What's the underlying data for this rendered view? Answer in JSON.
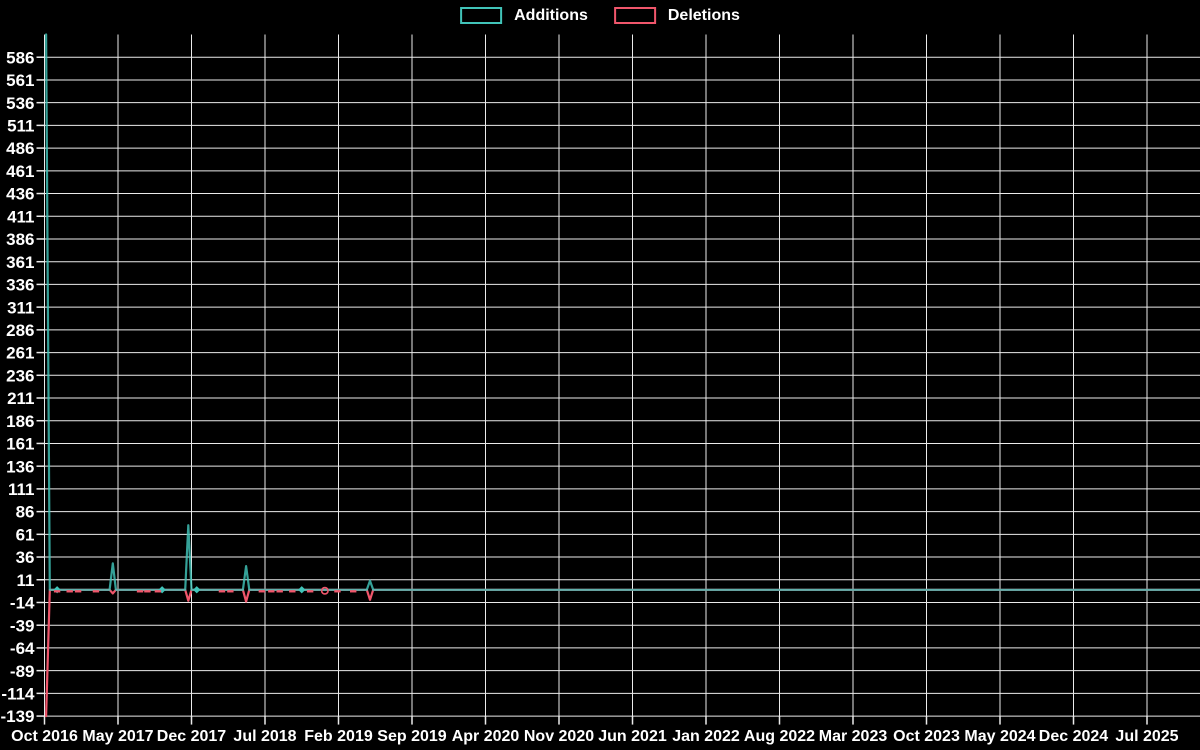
{
  "page": {
    "background": "#000000",
    "text_color": "#ffffff"
  },
  "legend": {
    "items": [
      {
        "label": "Additions",
        "color": "#41c4b9"
      },
      {
        "label": "Deletions",
        "color": "#f0566b"
      }
    ]
  },
  "chart_data": {
    "type": "line",
    "title": "",
    "legend_position": "top-center",
    "background": "#000000",
    "gridline_color": "#ebebeb",
    "grid": true,
    "x_axis": {
      "unit": "months since Oct 2016",
      "tick_interval_months": 7,
      "tick_labels": [
        "Oct 2016",
        "May 2017",
        "Dec 2017",
        "Jul 2018",
        "Feb 2019",
        "Sep 2019",
        "Apr 2020",
        "Nov 2020",
        "Jun 2021",
        "Jan 2022",
        "Aug 2022",
        "Mar 2023",
        "Oct 2023",
        "May 2024",
        "Dec 2024",
        "Jul 2025"
      ]
    },
    "y_axis": {
      "min": -139,
      "max": 611,
      "tick_step": 25,
      "tick_labels": [
        586,
        561,
        536,
        511,
        486,
        461,
        436,
        411,
        386,
        361,
        336,
        311,
        286,
        261,
        236,
        211,
        186,
        161,
        136,
        111,
        86,
        61,
        36,
        11,
        -14,
        -39,
        -64,
        -89,
        -114,
        -139
      ]
    },
    "series": [
      {
        "name": "Additions",
        "color": "#41c4b9",
        "points": [
          {
            "m": 0.15,
            "v": 611,
            "date": "Oct 2016"
          },
          {
            "m": 0.5,
            "v": 0
          },
          {
            "m": 1.2,
            "v": 0,
            "marker": "diamond"
          },
          {
            "m": 6.2,
            "v": 0
          },
          {
            "m": 6.5,
            "v": 29,
            "date": "Apr 2017"
          },
          {
            "m": 6.8,
            "v": 0
          },
          {
            "m": 11.2,
            "v": 0,
            "marker": "diamond"
          },
          {
            "m": 13.4,
            "v": 0
          },
          {
            "m": 13.7,
            "v": 71,
            "date": "Dec 2017"
          },
          {
            "m": 14.0,
            "v": 0
          },
          {
            "m": 14.5,
            "v": 0,
            "marker": "diamond"
          },
          {
            "m": 18.9,
            "v": 0
          },
          {
            "m": 19.2,
            "v": 26,
            "date": "May 2018"
          },
          {
            "m": 19.5,
            "v": 0
          },
          {
            "m": 24.5,
            "v": 0,
            "marker": "diamond"
          },
          {
            "m": 30.7,
            "v": 0
          },
          {
            "m": 31.0,
            "v": 10,
            "date": "May 2019"
          },
          {
            "m": 31.3,
            "v": 0
          },
          {
            "m": 110,
            "v": 0
          }
        ]
      },
      {
        "name": "Deletions",
        "color": "#f0566b",
        "points": [
          {
            "m": 0.15,
            "v": -139,
            "date": "Oct 2016"
          },
          {
            "m": 0.5,
            "v": 0
          },
          {
            "m": 1.2,
            "v": 0,
            "marker": "dash"
          },
          {
            "m": 2.4,
            "v": 0,
            "marker": "dash"
          },
          {
            "m": 3.2,
            "v": 0,
            "marker": "dash"
          },
          {
            "m": 4.9,
            "v": 0,
            "marker": "dash"
          },
          {
            "m": 6.2,
            "v": 0
          },
          {
            "m": 6.5,
            "v": -4,
            "date": "Apr 2017"
          },
          {
            "m": 6.8,
            "v": 0
          },
          {
            "m": 9.1,
            "v": 0,
            "marker": "dash"
          },
          {
            "m": 9.8,
            "v": 0,
            "marker": "dash"
          },
          {
            "m": 10.8,
            "v": 0,
            "marker": "dash"
          },
          {
            "m": 13.4,
            "v": 0
          },
          {
            "m": 13.7,
            "v": -12,
            "date": "Dec 2017"
          },
          {
            "m": 14.0,
            "v": 0
          },
          {
            "m": 16.9,
            "v": 0,
            "marker": "dash"
          },
          {
            "m": 17.7,
            "v": 0,
            "marker": "dash"
          },
          {
            "m": 18.9,
            "v": 0
          },
          {
            "m": 19.2,
            "v": -13,
            "date": "May 2018"
          },
          {
            "m": 19.5,
            "v": 0
          },
          {
            "m": 20.7,
            "v": 0,
            "marker": "dash"
          },
          {
            "m": 21.6,
            "v": 0,
            "marker": "dash"
          },
          {
            "m": 22.4,
            "v": 0,
            "marker": "dash"
          },
          {
            "m": 23.6,
            "v": 0,
            "marker": "dash"
          },
          {
            "m": 25.3,
            "v": 0,
            "marker": "dash"
          },
          {
            "m": 26.7,
            "v": 0,
            "marker": "ring"
          },
          {
            "m": 27.9,
            "v": 0,
            "marker": "dash"
          },
          {
            "m": 29.4,
            "v": 0,
            "marker": "dash"
          },
          {
            "m": 30.7,
            "v": 0
          },
          {
            "m": 31.0,
            "v": -11,
            "date": "May 2019"
          },
          {
            "m": 31.3,
            "v": 0
          },
          {
            "m": 110,
            "v": 0
          }
        ]
      }
    ]
  }
}
